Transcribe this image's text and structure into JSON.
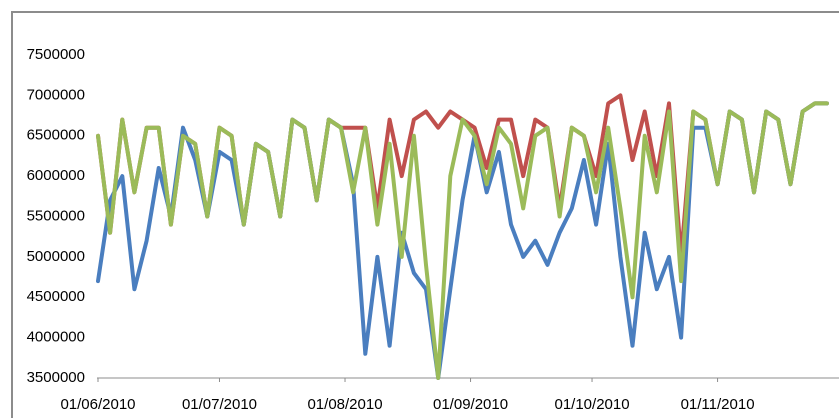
{
  "chart_data": {
    "type": "line",
    "x": [
      "01/06/2010",
      "04/06/2010",
      "07/06/2010",
      "10/06/2010",
      "13/06/2010",
      "16/06/2010",
      "19/06/2010",
      "22/06/2010",
      "25/06/2010",
      "28/06/2010",
      "01/07/2010",
      "04/07/2010",
      "07/07/2010",
      "10/07/2010",
      "13/07/2010",
      "16/07/2010",
      "19/07/2010",
      "22/07/2010",
      "25/07/2010",
      "28/07/2010",
      "31/07/2010",
      "03/08/2010",
      "06/08/2010",
      "09/08/2010",
      "12/08/2010",
      "15/08/2010",
      "18/08/2010",
      "21/08/2010",
      "24/08/2010",
      "27/08/2010",
      "30/08/2010",
      "02/09/2010",
      "05/09/2010",
      "08/09/2010",
      "11/09/2010",
      "14/09/2010",
      "17/09/2010",
      "20/09/2010",
      "23/09/2010",
      "26/09/2010",
      "29/09/2010",
      "02/10/2010",
      "05/10/2010",
      "08/10/2010",
      "11/10/2010",
      "14/10/2010",
      "17/10/2010",
      "20/10/2010",
      "23/10/2010",
      "26/10/2010",
      "29/10/2010",
      "01/11/2010",
      "04/11/2010",
      "07/11/2010",
      "10/11/2010",
      "13/11/2010",
      "16/11/2010",
      "19/11/2010",
      "22/11/2010",
      "25/11/2010",
      "28/11/2010"
    ],
    "series": [
      {
        "color": "#c0504d",
        "values": [
          6500000,
          5300000,
          6700000,
          5800000,
          6600000,
          6600000,
          5400000,
          6500000,
          6400000,
          5500000,
          6600000,
          6500000,
          5400000,
          6400000,
          6300000,
          5500000,
          6700000,
          6600000,
          5700000,
          6700000,
          6600000,
          6600000,
          6600000,
          5600000,
          6700000,
          6000000,
          6700000,
          6800000,
          6600000,
          6800000,
          6700000,
          6600000,
          6100000,
          6700000,
          6700000,
          6000000,
          6700000,
          6600000,
          5600000,
          6600000,
          6500000,
          6000000,
          6900000,
          7000000,
          6200000,
          6800000,
          6000000,
          6900000,
          5000000,
          6800000,
          6700000,
          5900000,
          6800000,
          6700000,
          5800000,
          6800000,
          6700000,
          5900000,
          6800000,
          6900000,
          6900000
        ]
      },
      {
        "color": "#4a7ebf",
        "values": [
          4700000,
          5700000,
          6000000,
          4600000,
          5200000,
          6100000,
          5500000,
          6600000,
          6200000,
          5500000,
          6300000,
          6200000,
          5400000,
          6400000,
          6300000,
          5500000,
          6700000,
          6600000,
          5700000,
          6700000,
          6600000,
          5900000,
          3800000,
          5000000,
          3900000,
          5300000,
          4800000,
          4600000,
          3500000,
          4600000,
          5700000,
          6500000,
          5800000,
          6300000,
          5400000,
          5000000,
          5200000,
          4900000,
          5300000,
          5600000,
          6200000,
          5400000,
          6400000,
          5000000,
          3900000,
          5300000,
          4600000,
          5000000,
          4000000,
          6600000,
          6600000,
          5900000,
          6800000,
          6700000,
          5800000,
          6800000,
          6700000,
          5900000,
          6800000,
          6900000,
          6900000
        ]
      },
      {
        "color": "#9bbb59",
        "values": [
          6500000,
          5300000,
          6700000,
          5800000,
          6600000,
          6600000,
          5400000,
          6500000,
          6400000,
          5500000,
          6600000,
          6500000,
          5400000,
          6400000,
          6300000,
          5500000,
          6700000,
          6600000,
          5700000,
          6700000,
          6600000,
          5800000,
          6600000,
          5400000,
          6400000,
          5000000,
          6500000,
          4900000,
          3500000,
          6000000,
          6700000,
          6500000,
          5900000,
          6600000,
          6400000,
          5600000,
          6500000,
          6600000,
          5500000,
          6600000,
          6500000,
          5800000,
          6600000,
          5600000,
          4500000,
          6500000,
          5800000,
          6800000,
          4700000,
          6800000,
          6700000,
          5900000,
          6800000,
          6700000,
          5800000,
          6800000,
          6700000,
          5900000,
          6800000,
          6900000,
          6900000
        ]
      }
    ],
    "xlim": [
      "01/06/2010",
      "30/11/2010"
    ],
    "xticks": [
      "01/06/2010",
      "01/07/2010",
      "01/08/2010",
      "01/09/2010",
      "01/10/2010",
      "01/11/2010"
    ],
    "ylim": [
      3500000,
      7500000
    ],
    "yticks": [
      3500000,
      4000000,
      4500000,
      5000000,
      5500000,
      6000000,
      6500000,
      7000000,
      7500000
    ],
    "grid": false
  }
}
